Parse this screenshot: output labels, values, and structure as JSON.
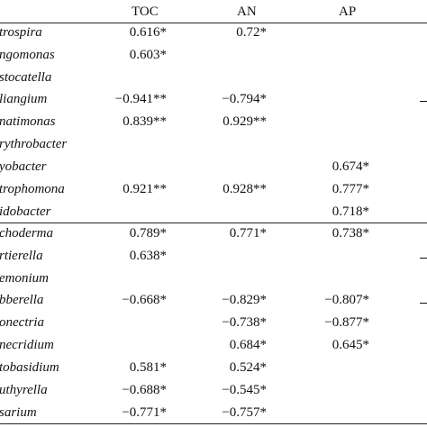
{
  "columns": [
    "TOC",
    "AN",
    "AP"
  ],
  "rows": [
    {
      "name": "trospira",
      "toc": "0.616*",
      "an": "0.72*",
      "ap": ""
    },
    {
      "name": "ngomonas",
      "toc": "0.603*",
      "an": "",
      "ap": ""
    },
    {
      "name": "stocatella",
      "toc": "",
      "an": "",
      "ap": ""
    },
    {
      "name": "liangium",
      "toc": "−0.941**",
      "an": "−0.794*",
      "ap": ""
    },
    {
      "name": "natimonas",
      "toc": "0.839**",
      "an": "0.929**",
      "ap": ""
    },
    {
      "name": "rythrobacter",
      "toc": "",
      "an": "",
      "ap": ""
    },
    {
      "name": "yobacter",
      "toc": "",
      "an": "",
      "ap": "0.674*"
    },
    {
      "name": "trophomona",
      "toc": "0.921**",
      "an": "0.928**",
      "ap": "0.777*"
    },
    {
      "name": "idobacter",
      "toc": "",
      "an": "",
      "ap": "0.718*"
    },
    {
      "name": "choderma",
      "toc": "0.789*",
      "an": "0.771*",
      "ap": "0.738*"
    },
    {
      "name": "rtierella",
      "toc": "0.638*",
      "an": "",
      "ap": ""
    },
    {
      "name": "emonium",
      "toc": "",
      "an": "",
      "ap": ""
    },
    {
      "name": "bberella",
      "toc": "−0.668*",
      "an": "−0.829*",
      "ap": "−0.807*"
    },
    {
      "name": "onectria",
      "toc": "",
      "an": "−0.738*",
      "ap": "−0.877*"
    },
    {
      "name": "necridium",
      "toc": "",
      "an": "0.684*",
      "ap": "0.645*"
    },
    {
      "name": "tobasidium",
      "toc": "0.581*",
      "an": "0.524*",
      "ap": ""
    },
    {
      "name": "uthyrella",
      "toc": "−0.688*",
      "an": "−0.545*",
      "ap": ""
    },
    {
      "name": "sarium",
      "toc": "−0.771*",
      "an": "−0.757*",
      "ap": ""
    }
  ]
}
